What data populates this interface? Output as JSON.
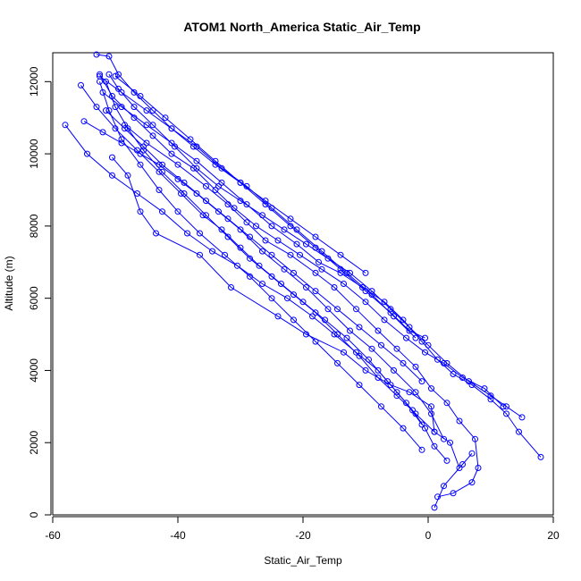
{
  "chart_data": {
    "type": "line",
    "title": "ATOM1 North_America Static_Air_Temp",
    "xlabel": "Static_Air_Temp",
    "ylabel": "Altitude (m)",
    "xlim": [
      -60,
      20
    ],
    "ylim": [
      0,
      12800
    ],
    "xticks": [
      -60,
      -40,
      -20,
      0,
      20
    ],
    "yticks": [
      0,
      2000,
      4000,
      6000,
      8000,
      10000,
      12000
    ],
    "color": "#0000ff",
    "series": [
      {
        "x": [
          1.0,
          2.5,
          5.5,
          7.0,
          5.0,
          3.5,
          1.0,
          0.5,
          -3.0,
          -6.0,
          -10.0,
          -13.5,
          -19.5,
          -24.0,
          -31.5,
          -36.5,
          -43.5,
          -46.0,
          -48.0,
          -50.5
        ],
        "y": [
          200,
          800,
          1400,
          1700,
          1300,
          2000,
          2300,
          3000,
          3400,
          3600,
          4000,
          4500,
          5000,
          5500,
          6300,
          7200,
          7800,
          8400,
          9400,
          9900
        ]
      },
      {
        "x": [
          1.5,
          4.0,
          7.0,
          8.0,
          7.5,
          5.0,
          3.0,
          0.5,
          -2.0,
          -5.0,
          -8.0,
          -11.5,
          -15.0,
          -18.0,
          -22.0,
          -26.0,
          -29.0,
          -32.0,
          -35.5,
          -40.0,
          -45.0,
          -48.5
        ],
        "y": [
          500,
          600,
          900,
          1300,
          2100,
          2600,
          3100,
          3500,
          4100,
          4600,
          5100,
          5700,
          6300,
          6700,
          7200,
          7600,
          8100,
          8600,
          9100,
          9700,
          10300,
          10800
        ]
      },
      {
        "x": [
          18.0,
          14.5,
          12.5,
          10.0,
          7.0,
          4.0,
          1.5,
          -1.0,
          -4.0,
          -7.0,
          -10.5,
          -14.0,
          -17.5,
          -21.0,
          -25.0,
          -29.0,
          -33.0,
          -37.0,
          -41.0,
          -45.0,
          -49.0,
          -52.0
        ],
        "y": [
          1600,
          2300,
          2800,
          3200,
          3600,
          3900,
          4300,
          4800,
          5400,
          5900,
          6300,
          6700,
          7000,
          7500,
          8000,
          8600,
          9200,
          9800,
          10300,
          10800,
          11300,
          11700
        ]
      },
      {
        "x": [
          15.0,
          12.5,
          10.0,
          6.5,
          3.0,
          0.0,
          -3.0,
          -6.0,
          -9.0,
          -12.5,
          -16.0,
          -19.5,
          -23.0,
          -26.5,
          -30.0,
          -33.5,
          -37.0,
          -40.5,
          -44.0,
          -47.0,
          -49.5,
          -51.0
        ],
        "y": [
          2700,
          3000,
          3300,
          3700,
          4200,
          4700,
          5200,
          5700,
          6200,
          6700,
          7100,
          7500,
          7900,
          8300,
          8700,
          9100,
          9600,
          10200,
          10800,
          11300,
          11800,
          12200
        ]
      },
      {
        "x": [
          12.0,
          9.0,
          5.5,
          2.5,
          -0.5,
          -3.5,
          -7.0,
          -10.0,
          -13.5,
          -17.0,
          -20.5,
          -24.0,
          -27.5,
          -31.0,
          -34.0,
          -37.5,
          -41.0,
          -44.0,
          -47.0,
          -50.5,
          -52.5
        ],
        "y": [
          3000,
          3500,
          3800,
          4200,
          4500,
          4900,
          5400,
          5900,
          6400,
          6800,
          7200,
          7600,
          8000,
          8500,
          9000,
          9600,
          10000,
          10500,
          11000,
          11600,
          12200
        ]
      },
      {
        "x": [
          1.0,
          -2.0,
          -5.0,
          -8.0,
          -11.0,
          -14.5,
          -18.0,
          -21.5,
          -25.0,
          -28.5,
          -32.0,
          -35.5,
          -39.0,
          -42.5,
          -45.5,
          -48.0,
          -50.0,
          -51.5
        ],
        "y": [
          2300,
          2800,
          3300,
          3800,
          4400,
          5000,
          5600,
          6100,
          6600,
          7100,
          7700,
          8300,
          8900,
          9500,
          10100,
          10700,
          11300,
          12000
        ]
      },
      {
        "x": [
          -1.0,
          -4.0,
          -7.5,
          -11.0,
          -14.5,
          -18.0,
          -21.5,
          -25.0,
          -28.5,
          -32.5,
          -36.5,
          -40.0,
          -43.0,
          -46.0,
          -49.0,
          -51.0,
          -52.5
        ],
        "y": [
          1800,
          2400,
          3000,
          3600,
          4200,
          4800,
          5400,
          6000,
          6600,
          7200,
          7800,
          8400,
          9000,
          9700,
          10400,
          11200,
          12000
        ]
      },
      {
        "x": [
          -58.0,
          -54.5,
          -50.5,
          -46.5,
          -42.5,
          -38.5,
          -34.5,
          -30.5,
          -26.5,
          -22.5,
          -18.5,
          -15.0,
          -11.5,
          -8.0,
          -5.0,
          -2.5,
          -0.5,
          1.0,
          3.0
        ],
        "y": [
          10800,
          10000,
          9400,
          8900,
          8400,
          7800,
          7300,
          6900,
          6400,
          6000,
          5500,
          5000,
          4500,
          4000,
          3400,
          2900,
          2400,
          1900,
          1500
        ]
      },
      {
        "x": [
          -55.5,
          -53.0,
          -50.0,
          -46.5,
          -43.0,
          -39.5,
          -36.0,
          -33.0,
          -30.0,
          -27.0,
          -23.5,
          -20.0,
          -16.5,
          -13.0,
          -9.5,
          -6.5,
          -3.5,
          -1.0
        ],
        "y": [
          11900,
          11300,
          10700,
          10100,
          9500,
          8900,
          8300,
          7900,
          7400,
          6900,
          6400,
          5900,
          5400,
          4900,
          4300,
          3700,
          3100,
          2500
        ]
      },
      {
        "x": [
          -55.0,
          -52.0,
          -49.0,
          -46.0,
          -43.0,
          -40.0,
          -37.0,
          -33.5,
          -30.0,
          -26.5,
          -23.0,
          -19.5,
          -16.0,
          -12.5,
          -9.0,
          -5.5,
          -2.0,
          0.5,
          2.5
        ],
        "y": [
          10900,
          10600,
          10300,
          10000,
          9700,
          9300,
          8900,
          8400,
          7900,
          7300,
          6800,
          6300,
          5700,
          5100,
          4600,
          4000,
          3400,
          2800,
          2100
        ]
      },
      {
        "x": [
          -53.0,
          -51.0,
          -49.5,
          -47.0,
          -44.0,
          -41.0,
          -37.5,
          -34.0,
          -30.0,
          -26.0,
          -22.0,
          -18.0,
          -14.0,
          -10.0
        ],
        "y": [
          12750,
          12700,
          12200,
          11700,
          11200,
          10700,
          10200,
          9700,
          9200,
          8700,
          8200,
          7700,
          7200,
          6700
        ]
      },
      {
        "x": [
          -52.5,
          -49.0,
          -45.0,
          -41.0,
          -37.0,
          -33.0,
          -29.0,
          -25.0,
          -21.0,
          -17.0,
          -13.0,
          -9.0,
          -5.5,
          -2.0
        ],
        "y": [
          12150,
          11700,
          11200,
          10700,
          10200,
          9600,
          9100,
          8500,
          7900,
          7300,
          6700,
          6100,
          5500,
          4900
        ]
      },
      {
        "x": [
          -50.0,
          -46.0,
          -42.0,
          -38.0,
          -34.0,
          -30.0,
          -26.0,
          -22.0,
          -18.0,
          -14.0,
          -10.0,
          -6.0,
          -3.0,
          -0.5
        ],
        "y": [
          12150,
          11600,
          11000,
          10400,
          9800,
          9200,
          8600,
          8000,
          7400,
          6800,
          6200,
          5600,
          5100,
          4900
        ]
      },
      {
        "x": [
          -51.5,
          -48.5,
          -45.5,
          -42.5,
          -39.0,
          -35.5,
          -32.0,
          -28.5,
          -25.0,
          -21.5,
          -18.0,
          -14.5,
          -11.0,
          -7.5,
          -4.0,
          -1.0
        ],
        "y": [
          11200,
          10700,
          10200,
          9700,
          9200,
          8700,
          8200,
          7700,
          7200,
          6700,
          6200,
          5700,
          5200,
          4700,
          4200,
          3700
        ]
      }
    ]
  }
}
